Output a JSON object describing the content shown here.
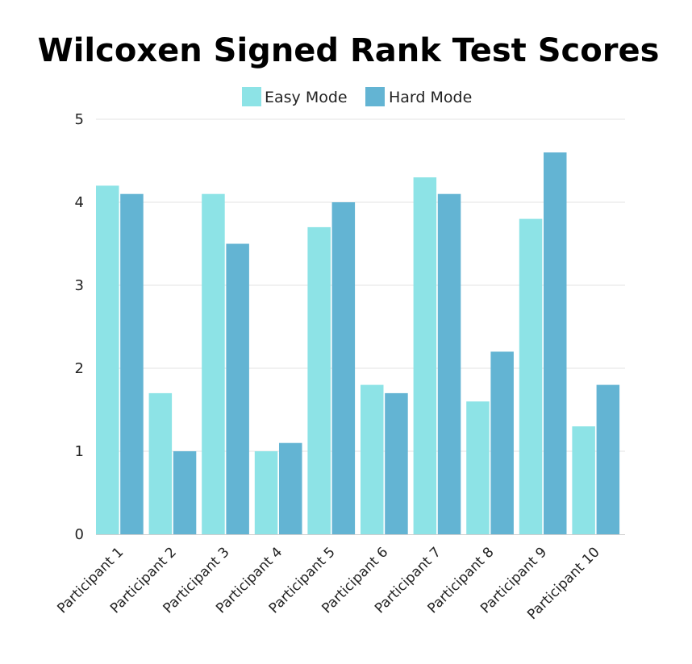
{
  "chart_data": {
    "type": "bar",
    "title": "Wilcoxen Signed Rank Test Scores",
    "xlabel": "",
    "ylabel": "",
    "ylim": [
      0,
      5
    ],
    "yticks": [
      "0",
      "1",
      "2",
      "3",
      "4",
      "5"
    ],
    "grid": true,
    "legend_position": "top",
    "categories": [
      "Participant 1",
      "Participant 2",
      "Participant 3",
      "Participant 4",
      "Participant 5",
      "Participant 6",
      "Participant 7",
      "Participant 8",
      "Participant 9",
      "Participant 10"
    ],
    "series": [
      {
        "name": "Easy Mode",
        "color": "#8de3e6",
        "values": [
          4.2,
          1.7,
          4.1,
          1.0,
          3.7,
          1.8,
          4.3,
          1.6,
          3.8,
          1.3
        ]
      },
      {
        "name": "Hard Mode",
        "color": "#63b4d3",
        "values": [
          4.1,
          1.0,
          3.5,
          1.1,
          4.0,
          1.7,
          4.1,
          2.2,
          4.6,
          1.8
        ]
      }
    ]
  }
}
